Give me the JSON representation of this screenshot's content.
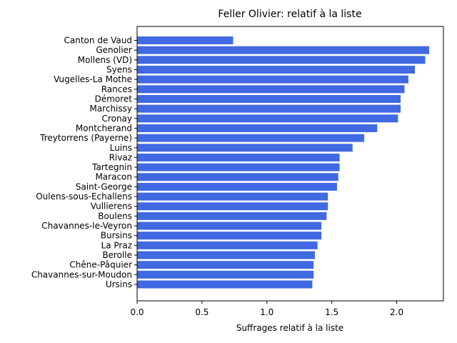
{
  "chart_data": {
    "type": "bar",
    "orientation": "horizontal",
    "title": "Feller Olivier: relatif à la liste",
    "xlabel": "Suffrages relatif à la liste",
    "ylabel": "",
    "xlim": [
      0,
      2.36
    ],
    "xticks": [
      0.0,
      0.5,
      1.0,
      1.5,
      2.0
    ],
    "xtick_labels": [
      "0.0",
      "0.5",
      "1.0",
      "1.5",
      "2.0"
    ],
    "grid": false,
    "bar_color": "#4169e1",
    "categories": [
      "Canton de Vaud",
      "Genolier",
      "Mollens (VD)",
      "Syens",
      "Vugelles-La Mothe",
      "Rances",
      "Démoret",
      "Marchissy",
      "Cronay",
      "Montcherand",
      "Treytorrens (Payerne)",
      "Luins",
      "Rivaz",
      "Tartegnin",
      "Maracon",
      "Saint-George",
      "Oulens-sous-Echallens",
      "Vullierens",
      "Boulens",
      "Chavannes-le-Veyron",
      "Bursins",
      "La Praz",
      "Berolle",
      "Chêne-Pâquier",
      "Chavannes-sur-Moudon",
      "Ursins"
    ],
    "values": [
      0.74,
      2.25,
      2.22,
      2.14,
      2.09,
      2.06,
      2.03,
      2.03,
      2.01,
      1.85,
      1.75,
      1.66,
      1.56,
      1.56,
      1.55,
      1.54,
      1.47,
      1.47,
      1.46,
      1.42,
      1.42,
      1.39,
      1.37,
      1.36,
      1.36,
      1.35
    ]
  }
}
